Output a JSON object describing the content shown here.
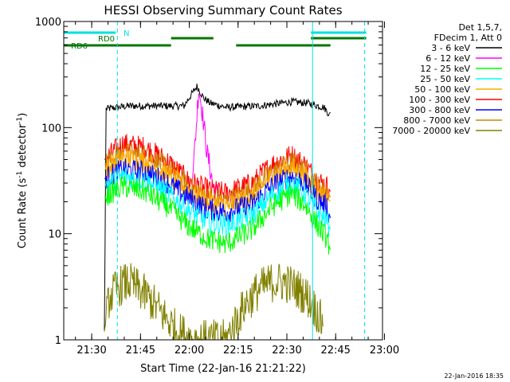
{
  "chart_data": {
    "type": "line",
    "title": "HESSI Observing Summary Count Rates",
    "xlabel": "Start Time (22-Jan-16 21:21:22)",
    "ylabel_main": "Count Rate (s",
    "ylabel_sup1": "-1",
    "ylabel_mid": " detector",
    "ylabel_sup2": "-1",
    "ylabel_end": ")",
    "x_unit": "minutes since 21:21:22",
    "xlim": [
      0,
      98
    ],
    "ylim": [
      1,
      1000
    ],
    "y_scale": "log",
    "x_ticks": [
      {
        "label": "21:30",
        "value": 8.6
      },
      {
        "label": "21:45",
        "value": 23.6
      },
      {
        "label": "22:00",
        "value": 38.6
      },
      {
        "label": "22:15",
        "value": 53.6
      },
      {
        "label": "22:30",
        "value": 68.6
      },
      {
        "label": "22:45",
        "value": 83.6
      },
      {
        "label": "23:00",
        "value": 98.6
      }
    ],
    "y_ticks": [
      {
        "label": "1",
        "value": 1
      },
      {
        "label": "10",
        "value": 10
      },
      {
        "label": "100",
        "value": 100
      },
      {
        "label": "1000",
        "value": 1000
      }
    ],
    "legend": {
      "header1": "Det 1,5,7,",
      "header2": "FDecim 1, Att 0",
      "entries": [
        {
          "label": "3 - 6 keV",
          "color": "#000000"
        },
        {
          "label": "6 - 12 keV",
          "color": "#ff00ff"
        },
        {
          "label": "12 - 25 keV",
          "color": "#00ff00"
        },
        {
          "label": "25 - 50 keV",
          "color": "#00ffff"
        },
        {
          "label": "50 - 100 keV",
          "color": "#ffaa00"
        },
        {
          "label": "100 - 300 keV",
          "color": "#ff0000"
        },
        {
          "label": "300 - 800 keV",
          "color": "#0000ff"
        },
        {
          "label": "800 - 7000 keV",
          "color": "#cc8800"
        },
        {
          "label": "7000 - 20000 keV",
          "color": "#808000"
        }
      ]
    },
    "flags": [
      {
        "label": "N",
        "color": "#00e0e0",
        "segments": [
          [
            0,
            16
          ],
          [
            76,
            93
          ]
        ]
      },
      {
        "label": "RD0",
        "color": "#007700",
        "segments": [
          [
            33,
            46
          ],
          [
            76,
            93
          ]
        ]
      },
      {
        "label": "RD6",
        "color": "#007700",
        "segments": [
          [
            0,
            10
          ],
          [
            9,
            33
          ],
          [
            53,
            82
          ]
        ]
      }
    ],
    "vertical_markers": [
      {
        "x": 0,
        "color": "#00e0e0",
        "style": "solid"
      },
      {
        "x": 16.5,
        "color": "#00e0e0",
        "style": "dashed"
      },
      {
        "x": 76.5,
        "color": "#00e0e0",
        "style": "solid"
      },
      {
        "x": 92.5,
        "color": "#00e0e0",
        "style": "dashed"
      }
    ],
    "series": [
      {
        "name": "3 - 6 keV",
        "color": "#000000",
        "x": [
          12.5,
          13,
          20,
          30,
          37,
          39,
          41,
          43,
          45,
          50,
          60,
          70,
          75,
          80,
          81.5,
          82
        ],
        "y": [
          1.2,
          150,
          160,
          160,
          160,
          200,
          245,
          190,
          170,
          155,
          160,
          175,
          170,
          155,
          135,
          140
        ]
      },
      {
        "name": "6 - 12 keV",
        "color": "#ff00ff",
        "x": [
          39.5,
          40.5,
          41.5,
          42.5,
          44,
          46,
          48
        ],
        "y": [
          30,
          80,
          240,
          150,
          60,
          28,
          22
        ]
      },
      {
        "name": "100 - 300 keV",
        "color": "#ff0000",
        "x": [
          12.5,
          18,
          25,
          32,
          38,
          44,
          50,
          58,
          64,
          70,
          74,
          78,
          81,
          82
        ],
        "y": [
          50,
          70,
          65,
          48,
          32,
          26,
          24,
          30,
          45,
          55,
          45,
          32,
          28,
          25
        ]
      },
      {
        "name": "800 - 7000 keV",
        "color": "#cc8800",
        "x": [
          12.5,
          18,
          25,
          32,
          38,
          44,
          50,
          58,
          64,
          70,
          74,
          78,
          81,
          82
        ],
        "y": [
          45,
          58,
          55,
          42,
          28,
          22,
          20,
          26,
          38,
          47,
          40,
          28,
          25,
          22
        ]
      },
      {
        "name": "50 - 100 keV",
        "color": "#ffaa00",
        "x": [
          12.5,
          18,
          25,
          32,
          38,
          44,
          50,
          58,
          64,
          70,
          74,
          78,
          81,
          82
        ],
        "y": [
          40,
          52,
          48,
          36,
          26,
          20,
          18,
          23,
          34,
          42,
          35,
          25,
          22,
          20
        ]
      },
      {
        "name": "300 - 800 keV",
        "color": "#0000ff",
        "x": [
          12.5,
          18,
          25,
          32,
          38,
          44,
          50,
          58,
          64,
          70,
          74,
          78,
          81,
          82
        ],
        "y": [
          33,
          40,
          38,
          30,
          22,
          17,
          16,
          19,
          28,
          35,
          30,
          21,
          18,
          14
        ]
      },
      {
        "name": "25 - 50 keV",
        "color": "#00ffff",
        "x": [
          12.5,
          18,
          25,
          32,
          38,
          44,
          50,
          58,
          64,
          70,
          74,
          78,
          81,
          82
        ],
        "y": [
          28,
          35,
          32,
          24,
          17,
          13,
          12,
          15,
          23,
          30,
          24,
          16,
          13,
          11
        ]
      },
      {
        "name": "12 - 25 keV",
        "color": "#00ff00",
        "x": [
          12.5,
          18,
          25,
          32,
          38,
          44,
          50,
          58,
          64,
          70,
          74,
          78,
          81,
          82
        ],
        "y": [
          22,
          28,
          25,
          18,
          12,
          9,
          8,
          11,
          18,
          24,
          19,
          12,
          9,
          7
        ]
      },
      {
        "name": "7000 - 20000 keV",
        "color": "#808000",
        "x": [
          12.5,
          14,
          17,
          20,
          23,
          26,
          30,
          35,
          40,
          45,
          50,
          53,
          56,
          60,
          64,
          68,
          72,
          75,
          78,
          80
        ],
        "y": [
          1.2,
          2.5,
          3.2,
          3.5,
          3.0,
          2.5,
          1.8,
          1.2,
          1.0,
          1.0,
          1.0,
          1.5,
          2.2,
          3.0,
          3.5,
          3.5,
          3.0,
          2.5,
          1.8,
          1.3
        ]
      }
    ]
  },
  "footer": {
    "timestamp": "22-Jan-2016 18:35"
  }
}
